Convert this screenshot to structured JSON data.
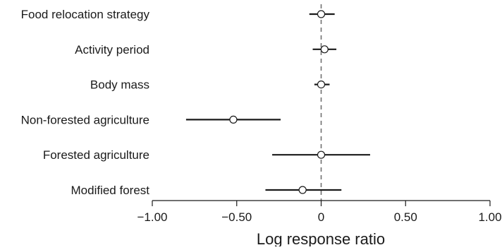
{
  "chart_data": {
    "type": "scatter",
    "subtype": "forest-plot",
    "title": "",
    "xlabel": "Log response ratio",
    "ylabel": "",
    "xlim": [
      -1.0,
      1.0
    ],
    "xticks": [
      -1.0,
      -0.5,
      0,
      0.5,
      1.0
    ],
    "xtick_labels": [
      "−1.00",
      "−0.50",
      "0",
      "0.50",
      "1.00"
    ],
    "reference_line": {
      "x": 0,
      "style": "dashed"
    },
    "grid": false,
    "categories": [
      "Food relocation strategy",
      "Activity period",
      "Body mass",
      "Non-forested agriculture",
      "Forested agriculture",
      "Modified forest"
    ],
    "estimates": [
      0.0,
      0.02,
      0.0,
      -0.52,
      0.0,
      -0.11
    ],
    "ci_lower": [
      -0.07,
      -0.05,
      -0.04,
      -0.8,
      -0.29,
      -0.33
    ],
    "ci_upper": [
      0.08,
      0.09,
      0.05,
      -0.24,
      0.29,
      0.12
    ],
    "colors": {
      "marks": "#1a1a1a",
      "reference": "#707070"
    }
  }
}
